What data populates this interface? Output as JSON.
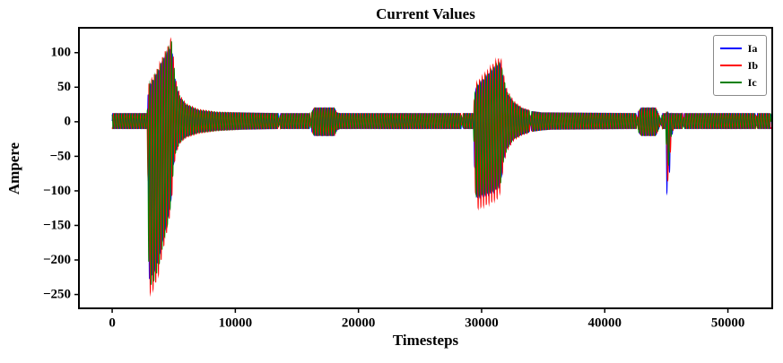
{
  "chart_data": {
    "type": "line",
    "title": "Current Values",
    "xlabel": "Timesteps",
    "ylabel": "Ampere",
    "xlim": [
      -2700,
      53600
    ],
    "ylim": [
      -270,
      136
    ],
    "x_range": [
      0,
      53500
    ],
    "period": 220,
    "samples": 14000,
    "grid": false,
    "legend_position": "upper right",
    "x_ticks": {
      "values": [
        0,
        10000,
        20000,
        30000,
        40000,
        50000
      ],
      "labels": [
        "0",
        "10000",
        "20000",
        "30000",
        "40000",
        "50000"
      ]
    },
    "y_ticks": {
      "values": [
        100,
        50,
        0,
        -50,
        -100,
        -150,
        -200,
        -250
      ],
      "labels": [
        "100",
        "50",
        "0",
        "−50",
        "−100",
        "−150",
        "−200",
        "−250"
      ]
    },
    "series": [
      {
        "name": "Ia",
        "color": "#0000ff",
        "phase": 0,
        "envelope": [
          [
            0,
            -10,
            12
          ],
          [
            2840,
            -10,
            12
          ],
          [
            2900,
            -80,
            36
          ],
          [
            2980,
            -228,
            50
          ],
          [
            3350,
            -220,
            60
          ],
          [
            3750,
            -202,
            73
          ],
          [
            4150,
            -167,
            88
          ],
          [
            4550,
            -137,
            100
          ],
          [
            4820,
            -107,
            110
          ],
          [
            4960,
            -65,
            86
          ],
          [
            5160,
            -42,
            54
          ],
          [
            5500,
            -28,
            34
          ],
          [
            6000,
            -21,
            24
          ],
          [
            7000,
            -15,
            16
          ],
          [
            8500,
            -12,
            13
          ],
          [
            10500,
            -11,
            13
          ],
          [
            13480,
            -10,
            12
          ],
          [
            13560,
            -2.5,
            2.5
          ],
          [
            13660,
            -10,
            12
          ],
          [
            16040,
            -10,
            12
          ],
          [
            16110,
            -2.5,
            2.5
          ],
          [
            16200,
            -14,
            14
          ],
          [
            16400,
            -20,
            20
          ],
          [
            18050,
            -20,
            20
          ],
          [
            18250,
            -12,
            13
          ],
          [
            18500,
            -10,
            12
          ],
          [
            28330,
            -10,
            12
          ],
          [
            28410,
            -3,
            3
          ],
          [
            28500,
            -10,
            12
          ],
          [
            29340,
            -10,
            12
          ],
          [
            29420,
            -62,
            36
          ],
          [
            29560,
            -110,
            49
          ],
          [
            30100,
            -107,
            59
          ],
          [
            30700,
            -103,
            70
          ],
          [
            31250,
            -97,
            80
          ],
          [
            31560,
            -88,
            82
          ],
          [
            31760,
            -55,
            62
          ],
          [
            32050,
            -38,
            41
          ],
          [
            32600,
            -24,
            27
          ],
          [
            33300,
            -18,
            19
          ],
          [
            33880,
            -15,
            16
          ],
          [
            33960,
            -3,
            3
          ],
          [
            34060,
            -14,
            15
          ],
          [
            34900,
            -12,
            13
          ],
          [
            35600,
            -11,
            13
          ],
          [
            42560,
            -10,
            12
          ],
          [
            42640,
            -2.5,
            2.5
          ],
          [
            42740,
            -15,
            15
          ],
          [
            42950,
            -20,
            20
          ],
          [
            44140,
            -20,
            20
          ],
          [
            44330,
            -13,
            13
          ],
          [
            44560,
            -3,
            3
          ],
          [
            44680,
            -10,
            12
          ],
          [
            44960,
            -10,
            12
          ],
          [
            45040,
            -103,
            14
          ],
          [
            45200,
            -92,
            12
          ],
          [
            45420,
            -22,
            12
          ],
          [
            45600,
            -10,
            12
          ],
          [
            46320,
            -10,
            12
          ],
          [
            46390,
            -4,
            4
          ],
          [
            46470,
            -10,
            12
          ],
          [
            52240,
            -10,
            12
          ],
          [
            52310,
            -5,
            5
          ],
          [
            52390,
            -10,
            12
          ],
          [
            53500,
            -10,
            12
          ]
        ]
      },
      {
        "name": "Ib",
        "color": "#ff0000",
        "phase": -2.0944,
        "envelope": [
          [
            0,
            -10,
            12
          ],
          [
            2840,
            -10,
            12
          ],
          [
            2900,
            -90,
            40
          ],
          [
            2980,
            -250,
            55
          ],
          [
            3350,
            -242,
            66
          ],
          [
            3750,
            -222,
            80
          ],
          [
            4150,
            -183,
            96
          ],
          [
            4550,
            -150,
            110
          ],
          [
            4820,
            -118,
            122
          ],
          [
            4960,
            -72,
            95
          ],
          [
            5160,
            -46,
            60
          ],
          [
            5500,
            -31,
            38
          ],
          [
            6000,
            -23,
            26
          ],
          [
            7000,
            -17,
            18
          ],
          [
            8500,
            -13,
            14
          ],
          [
            10500,
            -11,
            13
          ],
          [
            13480,
            -10,
            12
          ],
          [
            13560,
            -2.5,
            2.5
          ],
          [
            13660,
            -10,
            12
          ],
          [
            16040,
            -10,
            12
          ],
          [
            16110,
            -2.5,
            2.5
          ],
          [
            16200,
            -14,
            14
          ],
          [
            16400,
            -20,
            20
          ],
          [
            18050,
            -20,
            20
          ],
          [
            18250,
            -12,
            13
          ],
          [
            18500,
            -10,
            12
          ],
          [
            28330,
            -10,
            12
          ],
          [
            28410,
            -3,
            3
          ],
          [
            28500,
            -10,
            12
          ],
          [
            29340,
            -10,
            12
          ],
          [
            29420,
            -70,
            40
          ],
          [
            29560,
            -126,
            55
          ],
          [
            30100,
            -122,
            66
          ],
          [
            30700,
            -117,
            78
          ],
          [
            31250,
            -111,
            90
          ],
          [
            31560,
            -100,
            92
          ],
          [
            31760,
            -62,
            70
          ],
          [
            32050,
            -42,
            46
          ],
          [
            32600,
            -27,
            30
          ],
          [
            33300,
            -19,
            20
          ],
          [
            33880,
            -16,
            17
          ],
          [
            33960,
            -3,
            3
          ],
          [
            34060,
            -14,
            15
          ],
          [
            34900,
            -12,
            13
          ],
          [
            35600,
            -11,
            13
          ],
          [
            42560,
            -10,
            12
          ],
          [
            42640,
            -2.5,
            2.5
          ],
          [
            42740,
            -15,
            15
          ],
          [
            42950,
            -20,
            20
          ],
          [
            44140,
            -20,
            20
          ],
          [
            44330,
            -13,
            13
          ],
          [
            44560,
            -3,
            3
          ],
          [
            44680,
            -10,
            12
          ],
          [
            44960,
            -10,
            12
          ],
          [
            45040,
            -90,
            14
          ],
          [
            45200,
            -80,
            12
          ],
          [
            45420,
            -20,
            12
          ],
          [
            45600,
            -10,
            12
          ],
          [
            46320,
            -10,
            12
          ],
          [
            46390,
            -4,
            4
          ],
          [
            46470,
            -10,
            12
          ],
          [
            52240,
            -10,
            12
          ],
          [
            52310,
            -5,
            5
          ],
          [
            52390,
            -10,
            12
          ],
          [
            53500,
            -10,
            12
          ]
        ]
      },
      {
        "name": "Ic",
        "color": "#008000",
        "phase": 2.0944,
        "envelope": [
          [
            0,
            -10,
            12
          ],
          [
            2840,
            -10,
            12
          ],
          [
            2900,
            -85,
            38
          ],
          [
            2980,
            -240,
            52
          ],
          [
            3350,
            -232,
            63
          ],
          [
            3750,
            -213,
            77
          ],
          [
            4150,
            -176,
            92
          ],
          [
            4550,
            -144,
            105
          ],
          [
            4820,
            -113,
            116
          ],
          [
            4960,
            -69,
            91
          ],
          [
            5160,
            -44,
            57
          ],
          [
            5500,
            -30,
            36
          ],
          [
            6000,
            -22,
            25
          ],
          [
            7000,
            -16,
            17
          ],
          [
            8500,
            -13,
            14
          ],
          [
            10500,
            -11,
            13
          ],
          [
            13480,
            -10,
            12
          ],
          [
            13560,
            -2.5,
            2.5
          ],
          [
            13660,
            -10,
            12
          ],
          [
            16040,
            -10,
            12
          ],
          [
            16110,
            -2.5,
            2.5
          ],
          [
            16200,
            -14,
            14
          ],
          [
            16400,
            -20,
            20
          ],
          [
            18050,
            -20,
            20
          ],
          [
            18250,
            -12,
            13
          ],
          [
            18500,
            -10,
            12
          ],
          [
            28330,
            -10,
            12
          ],
          [
            28410,
            -3,
            3
          ],
          [
            28500,
            -10,
            12
          ],
          [
            29340,
            -10,
            12
          ],
          [
            29420,
            -66,
            38
          ],
          [
            29560,
            -108,
            50
          ],
          [
            30100,
            -105,
            60
          ],
          [
            30700,
            -101,
            72
          ],
          [
            31250,
            -96,
            83
          ],
          [
            31560,
            -88,
            85
          ],
          [
            31760,
            -58,
            66
          ],
          [
            32050,
            -40,
            43
          ],
          [
            32600,
            -25,
            28
          ],
          [
            33300,
            -18,
            19
          ],
          [
            33880,
            -15,
            16
          ],
          [
            33960,
            -3,
            3
          ],
          [
            34060,
            -14,
            15
          ],
          [
            34900,
            -12,
            13
          ],
          [
            35600,
            -11,
            13
          ],
          [
            42560,
            -10,
            12
          ],
          [
            42640,
            -2.5,
            2.5
          ],
          [
            42740,
            -15,
            15
          ],
          [
            42950,
            -20,
            20
          ],
          [
            44140,
            -20,
            20
          ],
          [
            44330,
            -13,
            13
          ],
          [
            44560,
            -3,
            3
          ],
          [
            44680,
            -10,
            12
          ],
          [
            44960,
            -10,
            12
          ],
          [
            45040,
            -72,
            14
          ],
          [
            45200,
            -62,
            12
          ],
          [
            45420,
            -18,
            12
          ],
          [
            45600,
            -10,
            12
          ],
          [
            46320,
            -10,
            12
          ],
          [
            46390,
            -4,
            4
          ],
          [
            46470,
            -10,
            12
          ],
          [
            52240,
            -10,
            12
          ],
          [
            52310,
            -5,
            5
          ],
          [
            52390,
            -10,
            12
          ],
          [
            53500,
            -10,
            12
          ]
        ]
      }
    ]
  }
}
